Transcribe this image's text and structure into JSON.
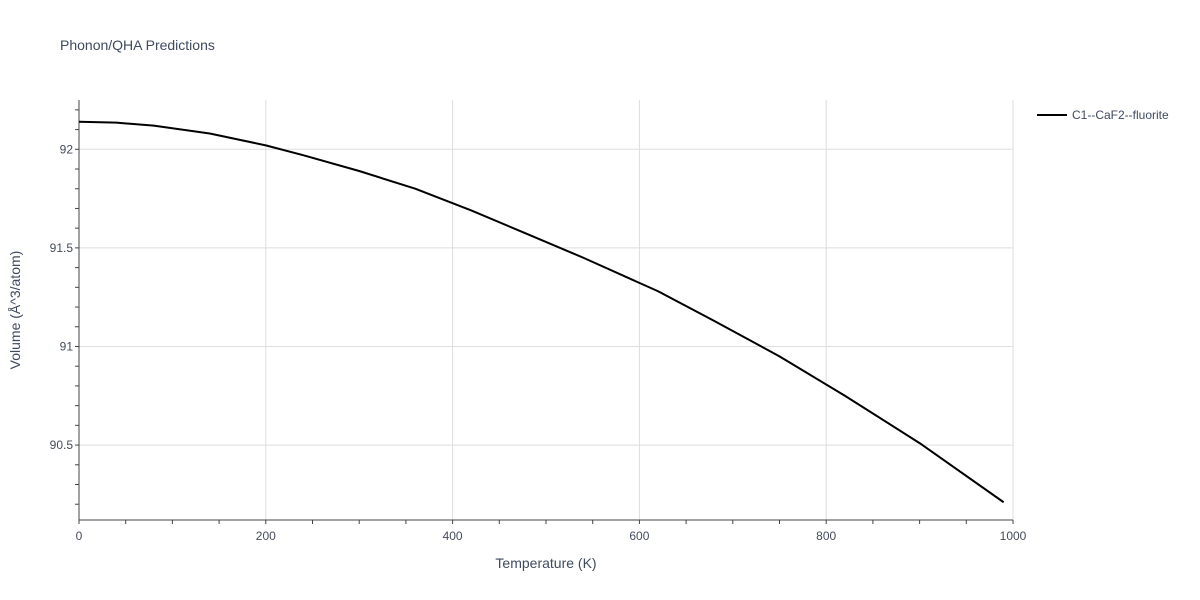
{
  "chart_data": {
    "type": "line",
    "title": "Phonon/QHA Predictions",
    "xlabel": "Temperature (K)",
    "ylabel": "Volume (Å^3/atom)",
    "xlim": [
      0,
      1000
    ],
    "ylim": [
      90.12,
      92.25
    ],
    "x_ticks": [
      0,
      200,
      400,
      600,
      800,
      1000
    ],
    "x_tick_labels": [
      "0",
      "200",
      "400",
      "600",
      "800",
      "1000"
    ],
    "y_ticks": [
      90.5,
      91,
      91.5,
      92
    ],
    "y_tick_labels": [
      "90.5",
      "91",
      "91.5",
      "92"
    ],
    "grid": true,
    "legend_position": "top-right",
    "series": [
      {
        "name": "C1--CaF2--fluorite",
        "color": "#000000",
        "x": [
          0,
          40,
          80,
          140,
          200,
          240,
          300,
          360,
          420,
          480,
          540,
          620,
          680,
          750,
          820,
          900,
          990
        ],
        "y": [
          92.14,
          92.135,
          92.12,
          92.08,
          92.02,
          91.97,
          91.89,
          91.8,
          91.69,
          91.57,
          91.45,
          91.28,
          91.13,
          90.95,
          90.75,
          90.51,
          90.21
        ]
      }
    ]
  }
}
